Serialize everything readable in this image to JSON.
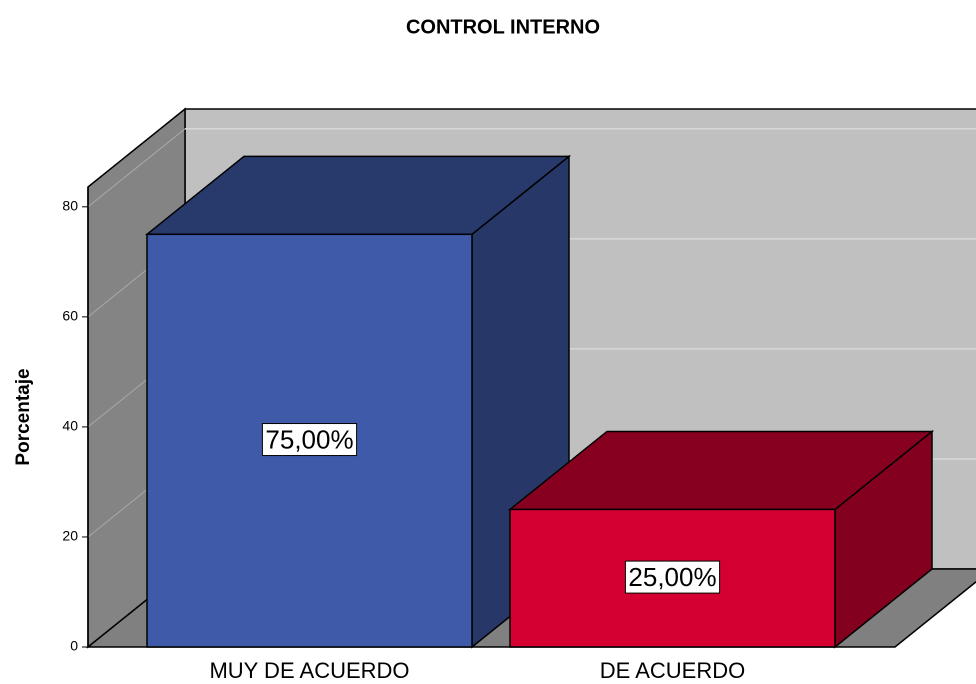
{
  "chart_data": {
    "type": "bar3d",
    "title": "CONTROL INTERNO",
    "ylabel": "Porcentaje",
    "categories": [
      "MUY DE ACUERDO",
      "DE ACUERDO"
    ],
    "values": [
      75,
      25
    ],
    "value_labels": [
      "75,00%",
      "25,00%"
    ],
    "colors": [
      "#3f5aa8",
      "#d40032"
    ],
    "ylim": [
      0,
      83.6
    ],
    "yticks": [
      0,
      20,
      40,
      60,
      80
    ],
    "grid": true
  }
}
